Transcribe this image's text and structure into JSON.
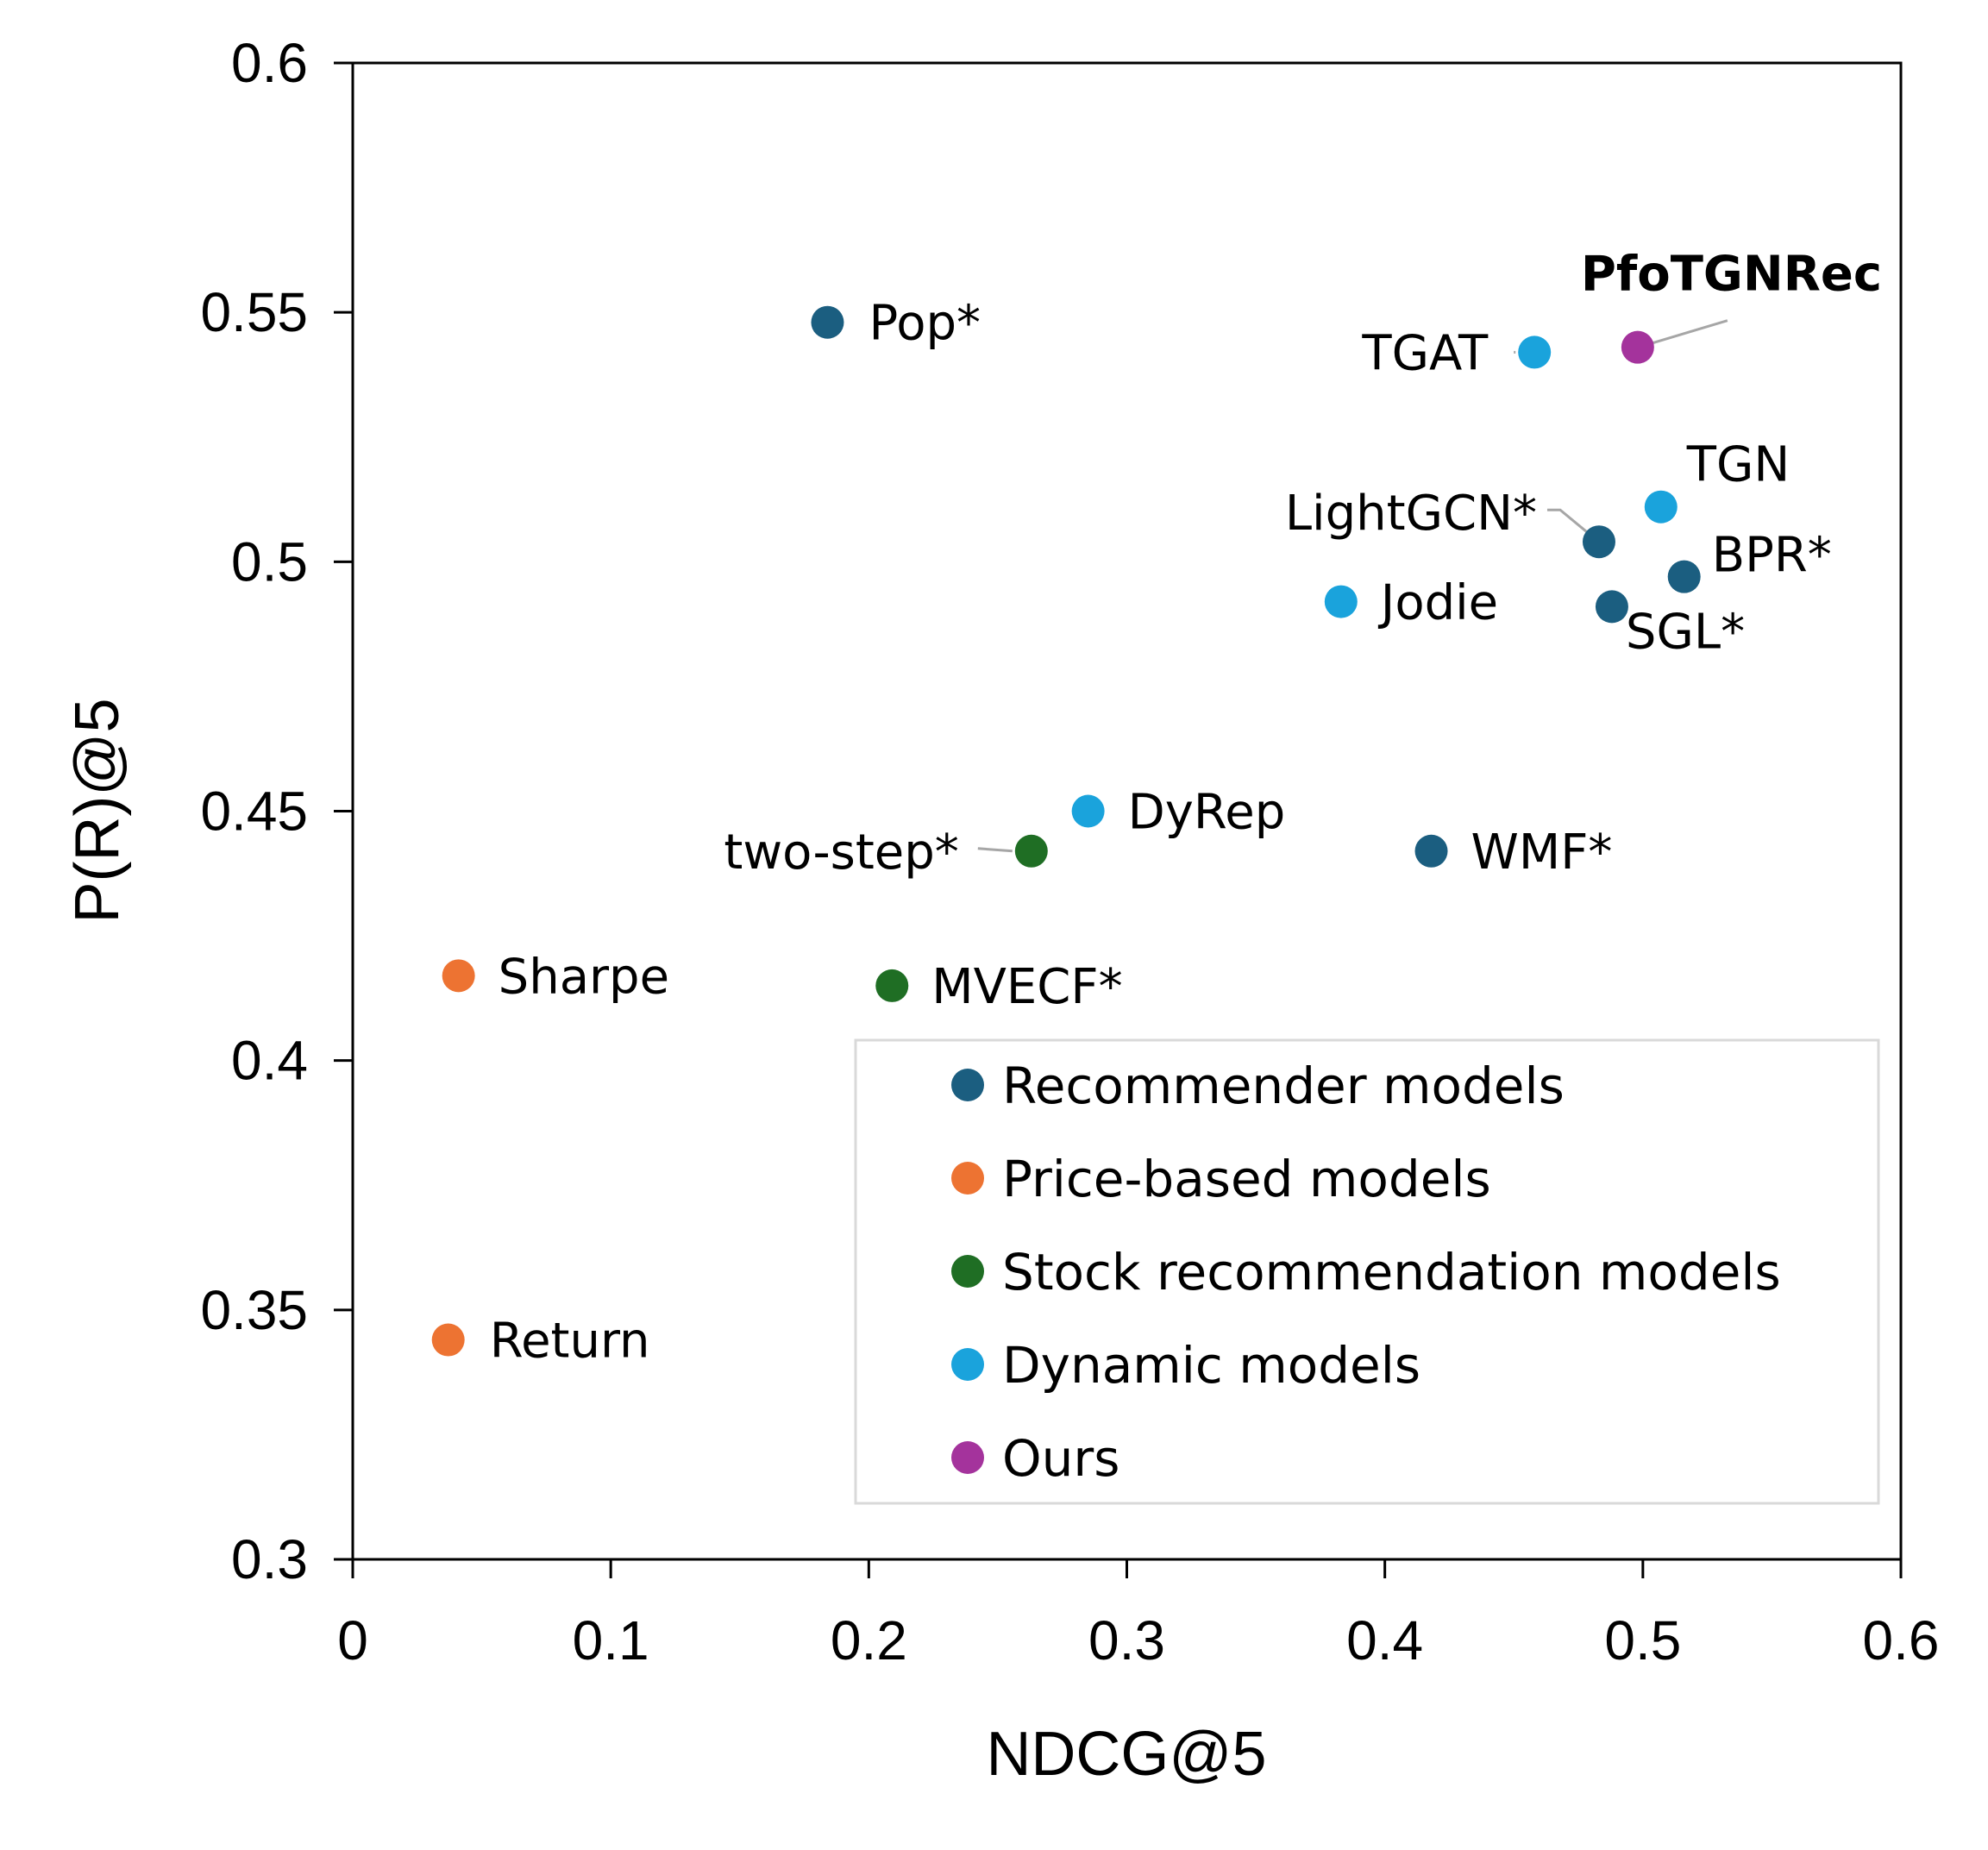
{
  "chart_data": {
    "type": "scatter",
    "xlabel": "NDCG@5",
    "ylabel": "P(R)@5",
    "xlim": [
      0,
      0.6
    ],
    "ylim": [
      0.3,
      0.6
    ],
    "xticks": [
      "0",
      "0.1",
      "0.2",
      "0.3",
      "0.4",
      "0.5",
      "0.6"
    ],
    "yticks": [
      "0.3",
      "0.35",
      "0.4",
      "0.45",
      "0.5",
      "0.55",
      "0.6"
    ],
    "grid": false,
    "legend_position": "lower-right",
    "categories": [
      {
        "key": "recommender",
        "name": "Recommender models",
        "color": "#1b5e80"
      },
      {
        "key": "price",
        "name": "Price-based models",
        "color": "#ed7332"
      },
      {
        "key": "stock",
        "name": "Stock recommendation models",
        "color": "#1f6e24"
      },
      {
        "key": "dynamic",
        "name": "Dynamic models",
        "color": "#1aa3dc"
      },
      {
        "key": "ours",
        "name": "Ours",
        "color": "#a4339c"
      }
    ],
    "points": [
      {
        "label": "Pop*",
        "x": 0.184,
        "y": 0.548,
        "category": "recommender"
      },
      {
        "label": "WMF*",
        "x": 0.418,
        "y": 0.442,
        "category": "recommender"
      },
      {
        "label": "LightGCN*",
        "x": 0.483,
        "y": 0.504,
        "category": "recommender"
      },
      {
        "label": "BPR*",
        "x": 0.516,
        "y": 0.497,
        "category": "recommender"
      },
      {
        "label": "SGL*",
        "x": 0.488,
        "y": 0.491,
        "category": "recommender"
      },
      {
        "label": "Sharpe",
        "x": 0.041,
        "y": 0.417,
        "category": "price"
      },
      {
        "label": "Return",
        "x": 0.037,
        "y": 0.344,
        "category": "price"
      },
      {
        "label": "two-step*",
        "x": 0.263,
        "y": 0.442,
        "category": "stock"
      },
      {
        "label": "MVECF*",
        "x": 0.209,
        "y": 0.415,
        "category": "stock"
      },
      {
        "label": "TGAT",
        "x": 0.458,
        "y": 0.542,
        "category": "dynamic"
      },
      {
        "label": "TGN",
        "x": 0.507,
        "y": 0.511,
        "category": "dynamic"
      },
      {
        "label": "Jodie",
        "x": 0.383,
        "y": 0.492,
        "category": "dynamic"
      },
      {
        "label": "DyRep",
        "x": 0.285,
        "y": 0.45,
        "category": "dynamic"
      },
      {
        "label": "PfoTGNRec",
        "x": 0.498,
        "y": 0.543,
        "category": "ours",
        "bold": true
      }
    ]
  }
}
